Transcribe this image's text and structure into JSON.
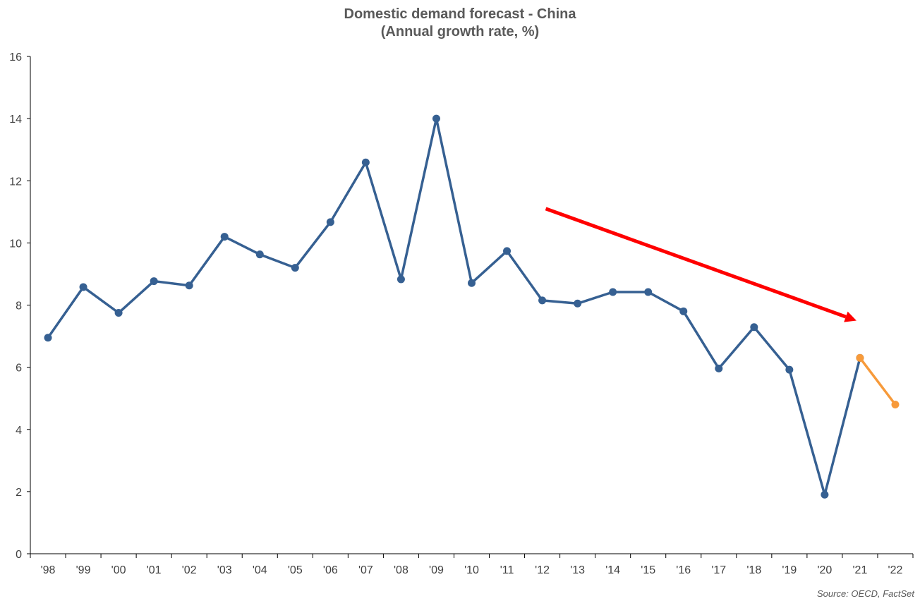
{
  "chart_data": {
    "type": "line",
    "title": "Domestic demand forecast - China",
    "subtitle": "(Annual growth rate, %)",
    "xlabel": "",
    "ylabel": "",
    "ylim": [
      0,
      16
    ],
    "yticks": [
      0,
      2,
      4,
      6,
      8,
      10,
      12,
      14,
      16
    ],
    "grid": false,
    "categories": [
      "'98",
      "'99",
      "'00",
      "'01",
      "'02",
      "'03",
      "'04",
      "'05",
      "'06",
      "'07",
      "'08",
      "'09",
      "'10",
      "'11",
      "'12",
      "'13",
      "'14",
      "'15",
      "'16",
      "'17",
      "'18",
      "'19",
      "'20",
      "'21",
      "'22"
    ],
    "series": [
      {
        "values": [
          6.95,
          8.58,
          7.75,
          8.77,
          8.63,
          10.2,
          9.63,
          9.2,
          10.67,
          12.59,
          8.83,
          14.0,
          8.71,
          9.74,
          8.15,
          8.05,
          8.42,
          8.42,
          7.8,
          5.96,
          7.29,
          5.92,
          1.9,
          6.3,
          null
        ],
        "color": "#366092"
      },
      {
        "values": [
          null,
          null,
          null,
          null,
          null,
          null,
          null,
          null,
          null,
          null,
          null,
          null,
          null,
          null,
          null,
          null,
          null,
          null,
          null,
          null,
          null,
          null,
          null,
          6.3,
          4.8
        ],
        "color": "#f79a3a"
      }
    ],
    "annotation_arrow": {
      "from": [
        14.1,
        11.1
      ],
      "to": [
        22.9,
        7.5
      ],
      "color": "#ff0000"
    },
    "source": "Source: OECD, FactSet"
  }
}
